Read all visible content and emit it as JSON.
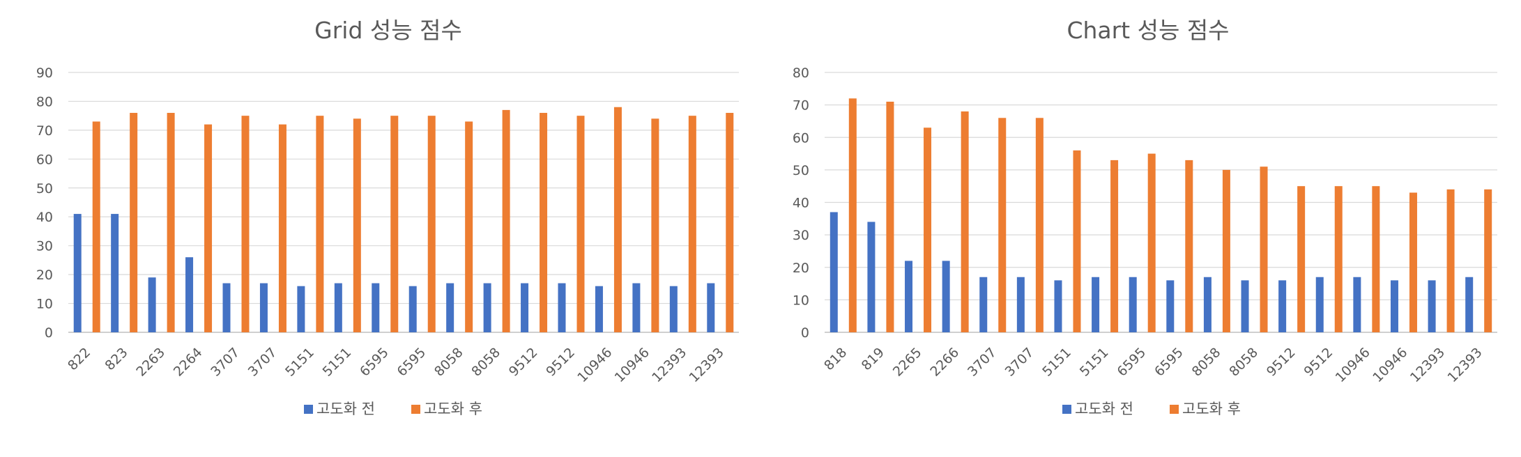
{
  "chart_data": [
    {
      "type": "bar",
      "title": "Grid 성능 점수",
      "xlabel": "",
      "ylabel": "",
      "ylim": [
        0,
        90
      ],
      "yticks": [
        0,
        10,
        20,
        30,
        40,
        50,
        60,
        70,
        80,
        90
      ],
      "categories": [
        "822",
        "823",
        "2263",
        "2264",
        "3707",
        "3707",
        "5151",
        "5151",
        "6595",
        "6595",
        "8058",
        "8058",
        "9512",
        "9512",
        "10946",
        "10946",
        "12393",
        "12393"
      ],
      "series": [
        {
          "name": "고도화 전",
          "color": "#4472c4",
          "values": [
            41,
            41,
            19,
            26,
            17,
            17,
            16,
            17,
            17,
            16,
            17,
            17,
            17,
            17,
            16,
            17,
            16,
            17
          ]
        },
        {
          "name": "고도화 후",
          "color": "#ed7d31",
          "values": [
            73,
            76,
            76,
            72,
            75,
            72,
            75,
            74,
            75,
            75,
            73,
            77,
            76,
            75,
            78,
            74,
            75,
            76
          ]
        }
      ],
      "grid": true,
      "legend_position": "bottom"
    },
    {
      "type": "bar",
      "title": "Chart 성능 점수",
      "xlabel": "",
      "ylabel": "",
      "ylim": [
        0,
        80
      ],
      "yticks": [
        0,
        10,
        20,
        30,
        40,
        50,
        60,
        70,
        80
      ],
      "categories": [
        "818",
        "819",
        "2265",
        "2266",
        "3707",
        "3707",
        "5151",
        "5151",
        "6595",
        "6595",
        "8058",
        "8058",
        "9512",
        "9512",
        "10946",
        "10946",
        "12393",
        "12393"
      ],
      "series": [
        {
          "name": "고도화 전",
          "color": "#4472c4",
          "values": [
            37,
            34,
            22,
            22,
            17,
            17,
            16,
            17,
            17,
            16,
            17,
            16,
            16,
            17,
            17,
            16,
            16,
            17
          ]
        },
        {
          "name": "고도화 후",
          "color": "#ed7d31",
          "values": [
            72,
            71,
            63,
            68,
            66,
            66,
            56,
            53,
            55,
            53,
            50,
            51,
            45,
            45,
            45,
            43,
            44,
            44
          ]
        }
      ],
      "grid": true,
      "legend_position": "bottom"
    }
  ]
}
